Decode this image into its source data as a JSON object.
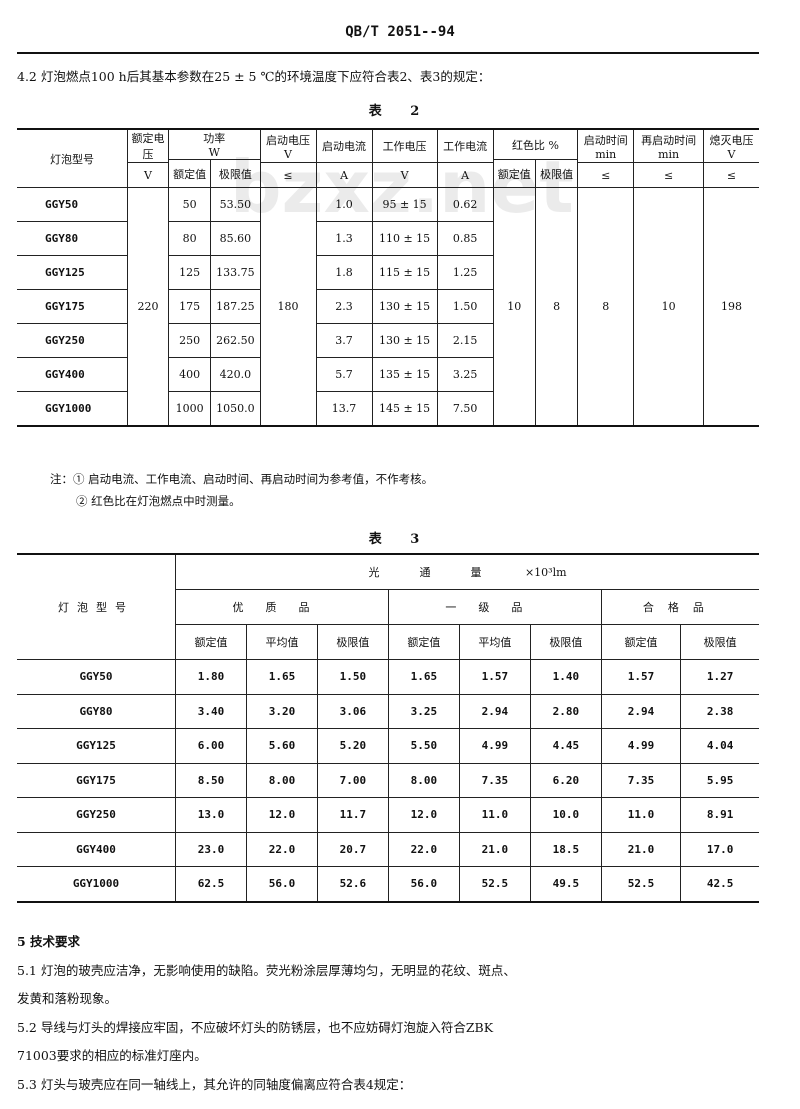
{
  "header": {
    "doc_code": "QB/T 2051--94"
  },
  "clause_4_2": "4.2  灯泡燃点100 h后其基本参数在25 ± 5 ℃的环境温度下应符合表2、表3的规定：",
  "watermark": "bzxz.net",
  "table2": {
    "caption": "表 2",
    "headers": {
      "model": "灯泡型号",
      "rated_voltage": "额定电压",
      "rated_voltage_unit": "V",
      "power": "功率",
      "power_unit": "W",
      "power_rated": "额定值",
      "power_limit": "极限值",
      "start_voltage": "启动电压",
      "start_voltage_unit": "V",
      "start_voltage_cond": "≤",
      "start_current": "启动电流",
      "start_current_unit": "A",
      "work_voltage": "工作电压",
      "work_voltage_unit": "V",
      "work_current": "工作电流",
      "work_current_unit": "A",
      "red_ratio": "红色比",
      "red_ratio_unit": "%",
      "red_rated": "额定值",
      "red_limit": "极限值",
      "start_time": "启动时间",
      "start_time_unit": "min",
      "start_time_cond": "≤",
      "restart_time": "再启动时间",
      "restart_time_unit": "min",
      "restart_time_cond": "≤",
      "off_voltage": "熄灭电压",
      "off_voltage_unit": "V",
      "off_voltage_cond": "≤"
    },
    "shared": {
      "rated_voltage": "220",
      "start_voltage": "180",
      "red_rated": "10",
      "red_limit": "8",
      "start_time": "8",
      "restart_time": "10",
      "off_voltage": "198"
    },
    "rows": [
      {
        "model": "GGY50",
        "power_rated": "50",
        "power_limit": "53.50",
        "start_current": "1.0",
        "work_voltage": "95 ± 15",
        "work_current": "0.62"
      },
      {
        "model": "GGY80",
        "power_rated": "80",
        "power_limit": "85.60",
        "start_current": "1.3",
        "work_voltage": "110 ± 15",
        "work_current": "0.85"
      },
      {
        "model": "GGY125",
        "power_rated": "125",
        "power_limit": "133.75",
        "start_current": "1.8",
        "work_voltage": "115 ± 15",
        "work_current": "1.25"
      },
      {
        "model": "GGY175",
        "power_rated": "175",
        "power_limit": "187.25",
        "start_current": "2.3",
        "work_voltage": "130 ± 15",
        "work_current": "1.50"
      },
      {
        "model": "GGY250",
        "power_rated": "250",
        "power_limit": "262.50",
        "start_current": "3.7",
        "work_voltage": "130 ± 15",
        "work_current": "2.15"
      },
      {
        "model": "GGY400",
        "power_rated": "400",
        "power_limit": "420.0",
        "start_current": "5.7",
        "work_voltage": "135 ± 15",
        "work_current": "3.25"
      },
      {
        "model": "GGY1000",
        "power_rated": "1000",
        "power_limit": "1050.0",
        "start_current": "13.7",
        "work_voltage": "145 ± 15",
        "work_current": "7.50"
      }
    ],
    "notes": [
      "注：① 启动电流、工作电流、启动时间、再启动时间为参考值，不作考核。",
      "② 红色比在灯泡燃点中时测量。"
    ]
  },
  "table3": {
    "caption": "表 3",
    "headers": {
      "model": "灯泡型号",
      "flux": "光通量",
      "flux_unit": "×10³lm",
      "grade_premium": "优质品",
      "grade_first": "一级品",
      "grade_pass": "合格品",
      "cols": [
        "额定值",
        "平均值",
        "极限值",
        "额定值",
        "平均值",
        "极限值",
        "额定值",
        "极限值"
      ]
    },
    "rows": [
      {
        "model": "GGY50",
        "values": [
          "1.80",
          "1.65",
          "1.50",
          "1.65",
          "1.57",
          "1.40",
          "1.57",
          "1.27"
        ]
      },
      {
        "model": "GGY80",
        "values": [
          "3.40",
          "3.20",
          "3.06",
          "3.25",
          "2.94",
          "2.80",
          "2.94",
          "2.38"
        ]
      },
      {
        "model": "GGY125",
        "values": [
          "6.00",
          "5.60",
          "5.20",
          "5.50",
          "4.99",
          "4.45",
          "4.99",
          "4.04"
        ]
      },
      {
        "model": "GGY175",
        "values": [
          "8.50",
          "8.00",
          "7.00",
          "8.00",
          "7.35",
          "6.20",
          "7.35",
          "5.95"
        ]
      },
      {
        "model": "GGY250",
        "values": [
          "13.0",
          "12.0",
          "11.7",
          "12.0",
          "11.0",
          "10.0",
          "11.0",
          "8.91"
        ]
      },
      {
        "model": "GGY400",
        "values": [
          "23.0",
          "22.0",
          "20.7",
          "22.0",
          "21.0",
          "18.5",
          "21.0",
          "17.0"
        ]
      },
      {
        "model": "GGY1000",
        "values": [
          "62.5",
          "56.0",
          "52.6",
          "56.0",
          "52.5",
          "49.5",
          "52.5",
          "42.5"
        ]
      }
    ]
  },
  "section5": {
    "title": "5  技术要求",
    "paragraphs": [
      "5.1  灯泡的玻壳应洁净，无影响使用的缺陷。荧光粉涂层厚薄均匀，无明显的花纹、斑点、",
      "发黄和落粉现象。",
      "5.2  导线与灯头的焊接应牢固，不应破坏灯头的防锈层，也不应妨碍灯泡旋入符合ZBK",
      "71003要求的相应的标准灯座内。",
      "5.3  灯头与玻壳应在同一轴线上，其允许的同轴度偏离应符合表4规定："
    ]
  }
}
